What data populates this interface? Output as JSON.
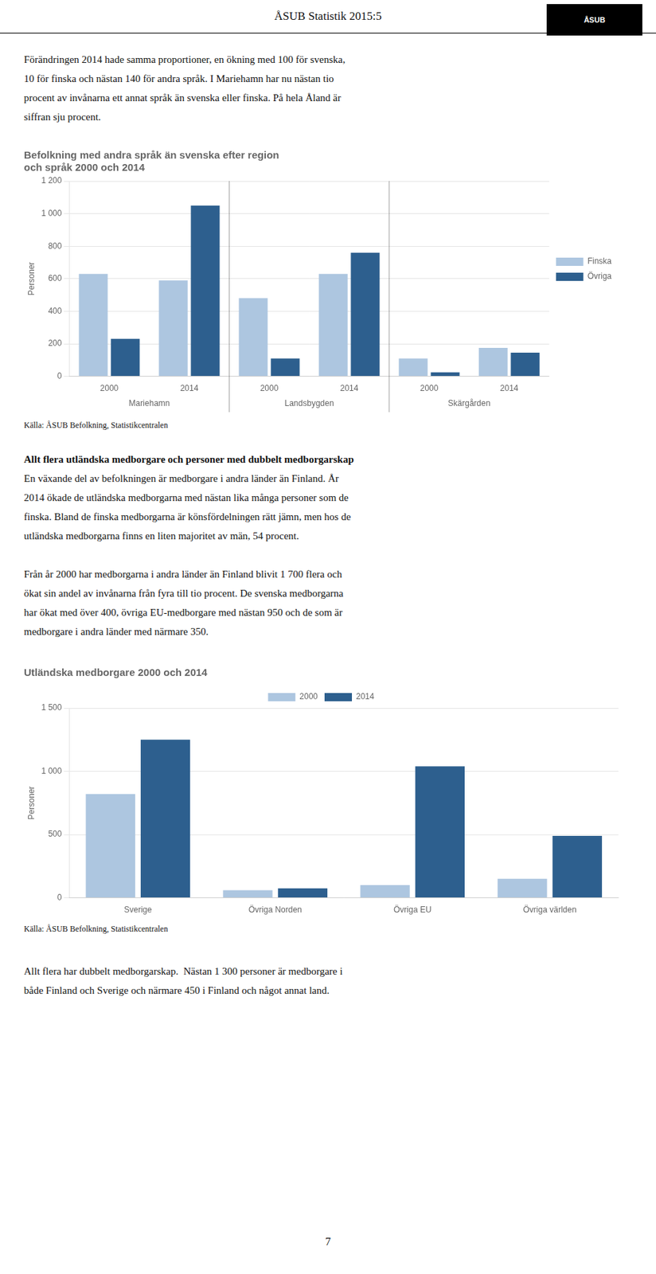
{
  "page_title": "ÅSUB Statistik 2015:5",
  "logo": "ÅSUB",
  "page_number": "7",
  "paragraphs": [
    {
      "lines": [
        "Förändringen 2014 hade samma proportioner, en ökning med 100 för svenska,",
        "10 för finska och nästan 140 för andra språk. I Mariehamn har nu nästan tio",
        "procent av invånarna ett annat språk än svenska eller finska. På hela Åland är",
        "siffran sju procent."
      ]
    },
    {
      "bold": "Allt flera utländska medborgare och personer med dubbelt medborgarskap",
      "lines": [
        "En växande del av befolkningen är medborgare i andra länder än Finland. År",
        "2014 ökade de utländska medborgarna med nästan lika många personer som de",
        "finska. Bland de finska medborgarna är könsfördelningen rätt jämn, men hos de",
        "utländska medborgarna finns en liten majoritet av män, 54 procent."
      ]
    },
    {
      "lines": [
        "Från år 2000 har medborgarna i andra länder än Finland blivit 1 700 flera och",
        "ökat sin andel av invånarna från fyra till tio procent. De svenska medborgarna",
        "har ökat med över 400, övriga EU-medborgare med nästan 950 och de som är",
        "medborgare i andra länder med närmare 350."
      ]
    },
    {
      "lines": [
        "Allt flera har dubbelt medborgarskap.  Nästan 1 300 personer är medborgare i",
        "både Finland och Sverige och närmare 450 i Finland och något annat land."
      ]
    }
  ],
  "chart_data": [
    {
      "type": "bar",
      "title": [
        "Befolkning med andra språk än svenska efter region",
        "och språk 2000 och 2014"
      ],
      "ylabel": "Personer",
      "categories": [
        "2000",
        "2014",
        "2000",
        "2014",
        "2000",
        "2014"
      ],
      "groups": [
        "Mariehamn",
        "Landsbygden",
        "Skärgården"
      ],
      "series": [
        {
          "name": "Finska",
          "color": "#adc6e0",
          "values": [
            630,
            590,
            480,
            630,
            110,
            175
          ]
        },
        {
          "name": "Övriga",
          "color": "#2d5f8e",
          "values": [
            230,
            1050,
            110,
            760,
            25,
            145
          ]
        }
      ],
      "ylim": [
        0,
        1200
      ],
      "yticks": [
        0,
        200,
        400,
        600,
        800,
        {
          "value": 1000,
          "label": "1 000"
        },
        {
          "value": 1200,
          "label": "1 200"
        }
      ],
      "grid": true,
      "legend": "right",
      "source": "Källa: ÅSUB Befolkning, Statistikcentralen"
    },
    {
      "type": "bar",
      "title": "Utländska medborgare 2000 och 2014",
      "ylabel": "Personer",
      "categories": [
        "Sverige",
        "Övriga Norden",
        "Övriga EU",
        "Övriga världen"
      ],
      "series": [
        {
          "name": "2000",
          "color": "#adc6e0",
          "values": [
            820,
            60,
            100,
            150
          ]
        },
        {
          "name": "2014",
          "color": "#2d5f8e",
          "values": [
            1250,
            75,
            1040,
            490
          ]
        }
      ],
      "ylim": [
        0,
        1500
      ],
      "yticks": [
        0,
        500,
        {
          "value": 1000,
          "label": "1 000"
        },
        {
          "value": 1500,
          "label": "1 500"
        }
      ],
      "grid": true,
      "legend": "top",
      "source": "Källa: ÅSUB Befolkning, Statistikcentralen"
    }
  ]
}
